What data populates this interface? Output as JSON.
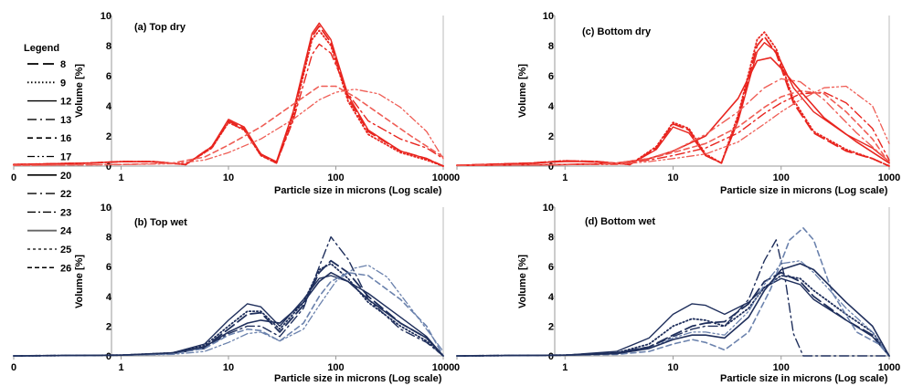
{
  "chart_data": [
    {
      "type": "line",
      "title": "(a) Top dry",
      "xlabel": "Particle size in microns (Log scale)",
      "ylabel": "Volume [%]",
      "xscale": "log",
      "xlim": [
        0.1,
        1000
      ],
      "ylim": [
        0,
        10
      ],
      "xticks": [
        "0",
        "1",
        "10",
        "100",
        "1000"
      ],
      "yticks": [
        "0",
        "2",
        "4",
        "6",
        "8",
        "10"
      ],
      "color": "#e8251f",
      "series": [
        {
          "x": [
            0.1,
            0.5,
            1,
            2,
            4,
            7,
            10,
            14,
            20,
            28,
            40,
            60,
            70,
            90,
            130,
            200,
            400,
            700,
            1000
          ],
          "y": [
            0.1,
            0.2,
            0.3,
            0.3,
            0.1,
            1.3,
            3.0,
            2.5,
            0.8,
            0.2,
            3.5,
            8.6,
            9.3,
            8.2,
            4.5,
            2.3,
            1.0,
            0.5,
            0.0
          ]
        },
        {
          "x": [
            0.1,
            0.5,
            1,
            2,
            4,
            7,
            10,
            14,
            20,
            28,
            40,
            60,
            70,
            90,
            130,
            200,
            400,
            700,
            1000
          ],
          "y": [
            0.1,
            0.2,
            0.3,
            0.3,
            0.1,
            1.2,
            2.9,
            2.4,
            0.7,
            0.2,
            3.2,
            8.4,
            9.0,
            8.0,
            4.3,
            2.1,
            0.9,
            0.4,
            0.0
          ]
        },
        {
          "x": [
            0.1,
            0.5,
            1,
            2,
            4,
            7,
            10,
            14,
            20,
            28,
            40,
            60,
            70,
            90,
            130,
            200,
            400,
            700,
            1000
          ],
          "y": [
            0.1,
            0.2,
            0.3,
            0.3,
            0.1,
            1.3,
            3.1,
            2.6,
            0.8,
            0.3,
            3.6,
            8.8,
            9.5,
            8.4,
            4.7,
            2.4,
            1.0,
            0.5,
            0.0
          ]
        },
        {
          "x": [
            0.1,
            0.5,
            1,
            2,
            4,
            7,
            10,
            14,
            20,
            28,
            40,
            60,
            70,
            90,
            130,
            200,
            400,
            700,
            1000
          ],
          "y": [
            0.1,
            0.2,
            0.3,
            0.3,
            0.1,
            1.2,
            2.9,
            2.4,
            0.7,
            0.2,
            3.0,
            7.4,
            8.1,
            7.5,
            4.8,
            3.0,
            1.8,
            1.2,
            0.5
          ]
        },
        {
          "x": [
            0.1,
            1,
            3,
            6,
            10,
            20,
            40,
            70,
            100,
            150,
            250,
            500,
            1000
          ],
          "y": [
            0.05,
            0.1,
            0.2,
            0.6,
            1.4,
            2.6,
            4.1,
            5.3,
            5.3,
            4.6,
            3.5,
            2.0,
            0.6
          ]
        },
        {
          "x": [
            0.1,
            1,
            3,
            6,
            10,
            20,
            40,
            70,
            100,
            150,
            250,
            400,
            700,
            1000
          ],
          "y": [
            0.05,
            0.1,
            0.15,
            0.4,
            0.9,
            1.8,
            3.1,
            4.4,
            4.9,
            5.1,
            4.8,
            3.9,
            2.3,
            0.5
          ]
        }
      ]
    },
    {
      "type": "line",
      "title": "(c) Bottom dry",
      "xlabel": "Particle size in microns (Log scale)",
      "ylabel": "Volume [%]",
      "xscale": "log",
      "xlim": [
        0.1,
        1000
      ],
      "ylim": [
        0,
        10
      ],
      "xticks": [
        "0",
        "1",
        "10",
        "100",
        "1000"
      ],
      "yticks": [
        "0",
        "2",
        "4",
        "6",
        "8",
        "10"
      ],
      "color": "#e8251f",
      "series": [
        {
          "x": [
            0.1,
            0.5,
            1,
            2,
            4,
            7,
            10,
            14,
            20,
            28,
            40,
            60,
            70,
            90,
            130,
            200,
            400,
            700,
            1000
          ],
          "y": [
            0.05,
            0.2,
            0.35,
            0.3,
            0.1,
            1.2,
            2.8,
            2.4,
            0.7,
            0.2,
            3.2,
            8.0,
            8.6,
            7.5,
            4.2,
            2.2,
            1.0,
            0.5,
            0.0
          ]
        },
        {
          "x": [
            0.1,
            0.5,
            1,
            2,
            4,
            7,
            10,
            14,
            20,
            28,
            40,
            60,
            70,
            90,
            130,
            200,
            400,
            700,
            1000
          ],
          "y": [
            0.05,
            0.2,
            0.35,
            0.3,
            0.1,
            1.3,
            2.9,
            2.5,
            0.8,
            0.2,
            3.4,
            8.4,
            8.9,
            7.8,
            4.4,
            2.3,
            1.1,
            0.5,
            0.0
          ]
        },
        {
          "x": [
            0.1,
            0.5,
            1,
            2,
            4,
            7,
            10,
            14,
            20,
            28,
            40,
            60,
            70,
            90,
            130,
            200,
            400,
            700,
            1000
          ],
          "y": [
            0.05,
            0.2,
            0.3,
            0.3,
            0.1,
            1.1,
            2.6,
            2.2,
            0.7,
            0.2,
            3.0,
            7.6,
            8.2,
            7.6,
            5.2,
            3.6,
            2.1,
            1.2,
            0.3
          ]
        },
        {
          "x": [
            0.1,
            1,
            3,
            6,
            10,
            20,
            40,
            70,
            100,
            150,
            250,
            400,
            700,
            1000
          ],
          "y": [
            0.05,
            0.1,
            0.15,
            0.4,
            0.7,
            1.2,
            2.2,
            3.5,
            4.2,
            4.8,
            4.9,
            4.2,
            2.5,
            0.4
          ]
        },
        {
          "x": [
            0.1,
            1,
            3,
            6,
            10,
            20,
            40,
            70,
            100,
            150,
            250,
            400,
            700,
            1000
          ],
          "y": [
            0.05,
            0.1,
            0.15,
            0.5,
            0.9,
            1.5,
            2.6,
            3.9,
            4.6,
            5.0,
            4.8,
            3.6,
            1.8,
            0.2
          ]
        },
        {
          "x": [
            0.1,
            1,
            3,
            6,
            10,
            20,
            40,
            70,
            100,
            150,
            250,
            400,
            700,
            1000
          ],
          "y": [
            0.05,
            0.1,
            0.1,
            0.3,
            0.5,
            0.8,
            1.6,
            2.8,
            3.6,
            4.4,
            5.2,
            5.3,
            4.0,
            1.5
          ]
        },
        {
          "x": [
            0.1,
            1,
            3,
            6,
            10,
            20,
            40,
            60,
            80,
            100,
            150,
            250,
            500,
            1000
          ],
          "y": [
            0.05,
            0.1,
            0.2,
            0.5,
            1.0,
            2.0,
            4.5,
            7.0,
            7.2,
            6.5,
            5.0,
            3.2,
            1.6,
            0.2
          ]
        },
        {
          "x": [
            0.1,
            1,
            3,
            6,
            10,
            20,
            40,
            70,
            100,
            150,
            250,
            500,
            1000
          ],
          "y": [
            0.05,
            0.1,
            0.2,
            0.5,
            1.0,
            2.1,
            3.6,
            5.2,
            5.8,
            5.6,
            4.4,
            2.2,
            0.3
          ]
        }
      ]
    },
    {
      "type": "line",
      "title": "(b) Top wet",
      "xlabel": "Particle size in microns (Log scale)",
      "ylabel": "Volume [%]",
      "xscale": "log",
      "xlim": [
        0.1,
        1000
      ],
      "ylim": [
        0,
        10
      ],
      "xticks": [
        "0",
        "1",
        "10",
        "100",
        "1000"
      ],
      "yticks": [
        "0",
        "2",
        "4",
        "6",
        "8",
        "10"
      ],
      "color": "#1f2f5c",
      "series": [
        {
          "x": [
            0.1,
            1,
            3,
            6,
            10,
            15,
            20,
            30,
            50,
            70,
            90,
            130,
            200,
            400,
            700,
            1000
          ],
          "y": [
            0.0,
            0.05,
            0.15,
            0.6,
            1.8,
            2.8,
            2.9,
            1.6,
            3.4,
            5.6,
            6.4,
            5.6,
            4.0,
            2.2,
            1.2,
            0.0
          ]
        },
        {
          "x": [
            0.1,
            1,
            3,
            6,
            10,
            15,
            20,
            30,
            50,
            70,
            90,
            130,
            200,
            400,
            700,
            1000
          ],
          "y": [
            0.0,
            0.05,
            0.2,
            0.7,
            2.0,
            3.0,
            3.0,
            1.8,
            3.6,
            5.8,
            6.2,
            5.2,
            3.6,
            2.0,
            1.0,
            0.0
          ]
        },
        {
          "x": [
            0.1,
            1,
            3,
            6,
            10,
            15,
            20,
            30,
            50,
            70,
            90,
            130,
            200,
            400,
            700,
            1000
          ],
          "y": [
            0.0,
            0.05,
            0.2,
            0.8,
            2.4,
            3.5,
            3.3,
            2.0,
            3.8,
            5.2,
            5.4,
            5.0,
            4.2,
            2.6,
            1.3,
            0.0
          ]
        },
        {
          "x": [
            0.1,
            1,
            3,
            6,
            10,
            15,
            20,
            30,
            50,
            70,
            90,
            130,
            200,
            400,
            700,
            1000
          ],
          "y": [
            0.0,
            0.05,
            0.15,
            0.5,
            1.5,
            2.0,
            2.0,
            1.3,
            3.2,
            6.0,
            8.0,
            6.5,
            3.8,
            1.8,
            0.9,
            0.0
          ]
        },
        {
          "x": [
            0.1,
            1,
            3,
            6,
            10,
            15,
            20,
            30,
            50,
            70,
            90,
            130,
            200,
            400,
            700,
            1000
          ],
          "y": [
            0.0,
            0.05,
            0.15,
            0.5,
            1.4,
            1.8,
            1.7,
            1.0,
            2.2,
            4.0,
            5.0,
            5.6,
            5.4,
            3.8,
            2.0,
            0.0
          ]
        },
        {
          "x": [
            0.1,
            1,
            3,
            6,
            10,
            15,
            20,
            30,
            50,
            70,
            100,
            150,
            200,
            300,
            500,
            1000
          ],
          "y": [
            0.0,
            0.05,
            0.1,
            0.3,
            0.9,
            1.5,
            1.6,
            1.0,
            1.8,
            3.4,
            5.0,
            5.9,
            6.1,
            5.3,
            3.2,
            0.3
          ]
        },
        {
          "x": [
            0.1,
            1,
            3,
            6,
            10,
            15,
            20,
            30,
            50,
            70,
            90,
            130,
            200,
            400,
            700,
            1000
          ],
          "y": [
            0.0,
            0.05,
            0.2,
            0.6,
            1.6,
            2.2,
            2.4,
            2.2,
            3.6,
            5.0,
            5.6,
            5.0,
            3.8,
            2.2,
            1.2,
            0.0
          ]
        }
      ]
    },
    {
      "type": "line",
      "title": "(d) Bottom wet",
      "xlabel": "Particle size in microns (Log scale)",
      "ylabel": "Volume [%]",
      "xscale": "log",
      "xlim": [
        0.1,
        1000
      ],
      "ylim": [
        0,
        10
      ],
      "xticks": [
        "0",
        "1",
        "10",
        "100",
        "1000"
      ],
      "yticks": [
        "0",
        "2",
        "4",
        "6",
        "8",
        "10"
      ],
      "color": "#1f2f5c",
      "series": [
        {
          "x": [
            0.1,
            1,
            3,
            6,
            10,
            15,
            20,
            30,
            50,
            70,
            100,
            150,
            200,
            400,
            700,
            1000
          ],
          "y": [
            0.0,
            0.05,
            0.2,
            0.6,
            1.4,
            2.0,
            2.2,
            2.3,
            3.5,
            5.0,
            5.6,
            5.0,
            4.0,
            2.4,
            1.4,
            0.0
          ]
        },
        {
          "x": [
            0.1,
            1,
            3,
            6,
            10,
            15,
            20,
            30,
            50,
            70,
            100,
            150,
            200,
            400,
            700,
            1000
          ],
          "y": [
            0.0,
            0.05,
            0.2,
            0.8,
            2.0,
            2.5,
            2.4,
            2.0,
            3.2,
            4.6,
            5.4,
            5.2,
            4.4,
            2.8,
            1.6,
            0.0
          ]
        },
        {
          "x": [
            0.1,
            1,
            3,
            6,
            10,
            15,
            20,
            30,
            50,
            70,
            100,
            150,
            200,
            400,
            700,
            1000
          ],
          "y": [
            0.0,
            0.05,
            0.3,
            1.2,
            2.8,
            3.5,
            3.4,
            2.8,
            3.6,
            4.6,
            5.2,
            4.8,
            3.8,
            2.4,
            1.3,
            0.0
          ]
        },
        {
          "x": [
            0.1,
            1,
            3,
            6,
            10,
            15,
            20,
            30,
            50,
            70,
            90,
            110,
            130,
            160,
            200,
            1000
          ],
          "y": [
            0.0,
            0.05,
            0.2,
            0.6,
            1.3,
            1.8,
            2.0,
            2.0,
            3.8,
            6.4,
            7.8,
            5.0,
            1.5,
            0.0,
            0.0,
            0.0
          ]
        },
        {
          "x": [
            0.1,
            1,
            3,
            6,
            10,
            15,
            20,
            30,
            50,
            80,
            120,
            160,
            200,
            300,
            500,
            800,
            1000
          ],
          "y": [
            0.0,
            0.05,
            0.1,
            0.3,
            0.8,
            1.1,
            0.9,
            0.4,
            1.6,
            4.5,
            7.8,
            8.6,
            7.8,
            4.2,
            1.6,
            0.8,
            0.0
          ]
        },
        {
          "x": [
            0.1,
            1,
            3,
            6,
            10,
            15,
            20,
            30,
            50,
            70,
            100,
            150,
            200,
            400,
            700,
            1000
          ],
          "y": [
            0.0,
            0.05,
            0.15,
            0.5,
            1.2,
            1.6,
            1.6,
            1.4,
            3.0,
            4.8,
            6.2,
            6.4,
            5.6,
            3.2,
            1.6,
            0.0
          ]
        },
        {
          "x": [
            0.1,
            1,
            3,
            6,
            10,
            15,
            20,
            30,
            50,
            70,
            100,
            150,
            200,
            400,
            700,
            1000
          ],
          "y": [
            0.0,
            0.05,
            0.15,
            0.5,
            1.1,
            1.4,
            1.4,
            1.2,
            2.6,
            4.4,
            5.8,
            6.2,
            5.8,
            3.6,
            2.0,
            0.0
          ]
        }
      ]
    }
  ],
  "legend": {
    "title": "Legend",
    "entries": [
      "8",
      "9",
      "12",
      "13",
      "16",
      "17",
      "20",
      "22",
      "23",
      "24",
      "25",
      "26"
    ]
  }
}
